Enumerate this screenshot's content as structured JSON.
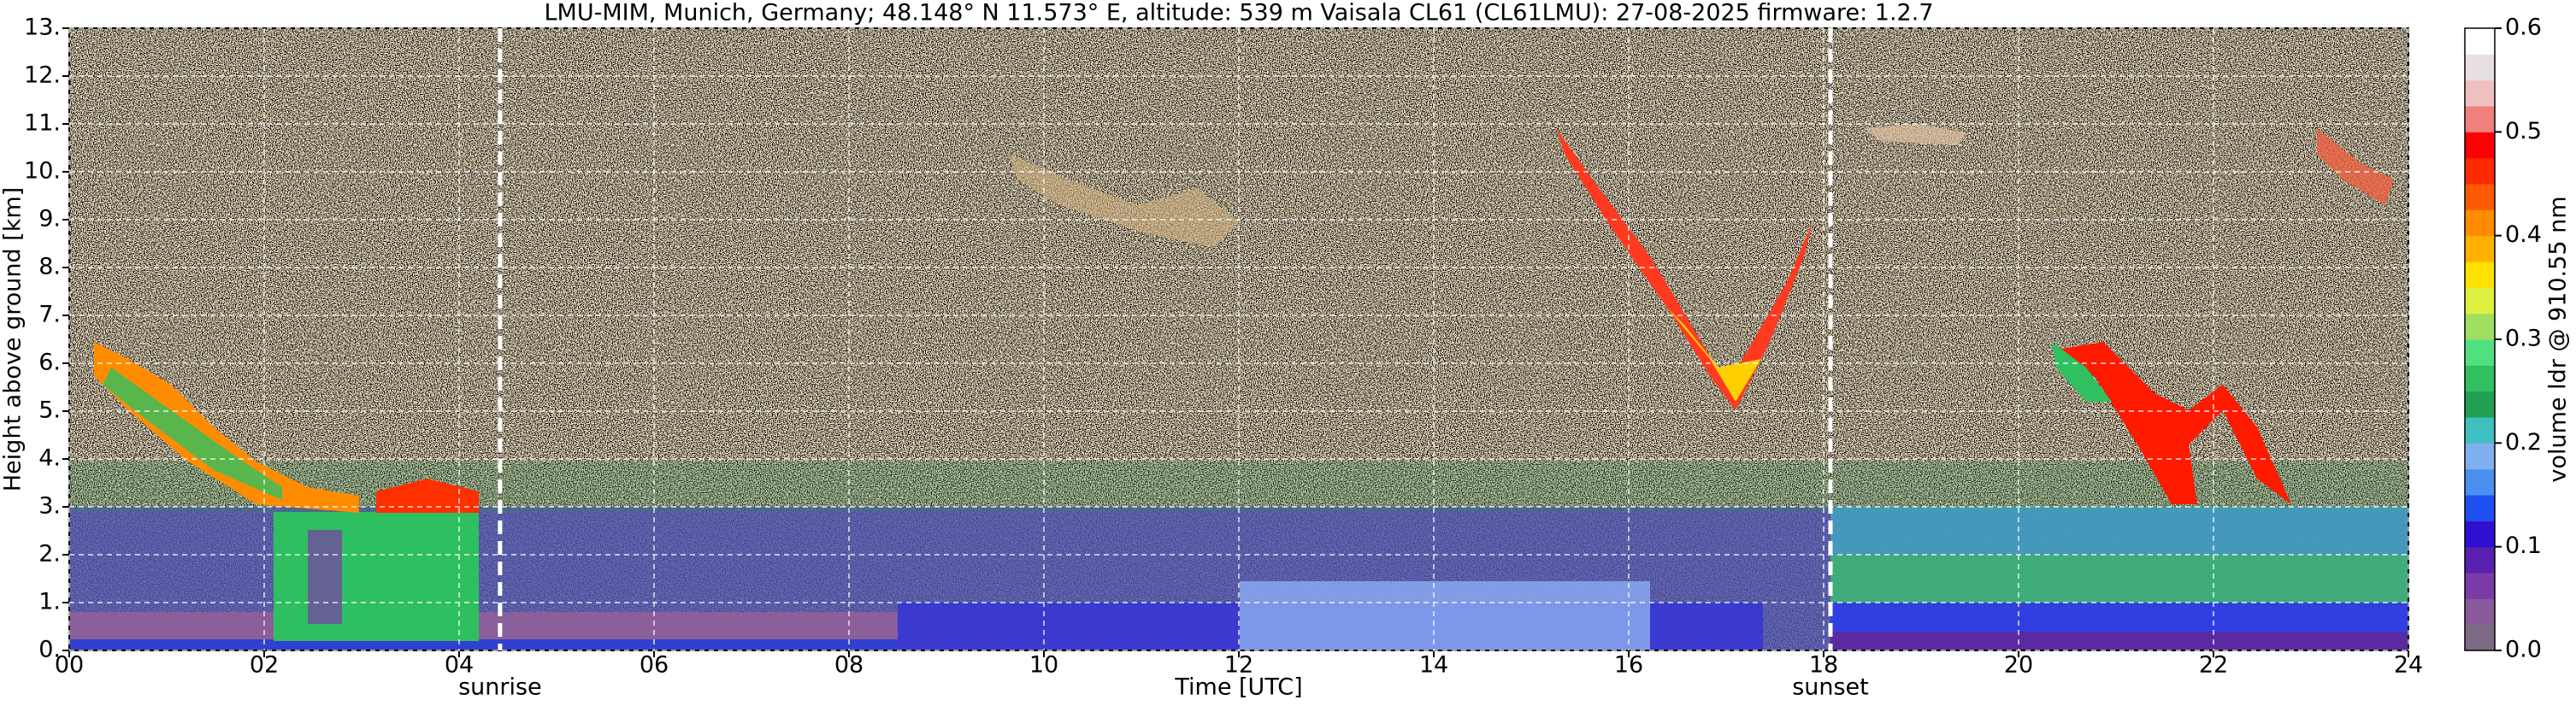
{
  "chart_data": {
    "type": "heatmap",
    "title": "LMU-MIM, Munich, Germany; 48.148° N 11.573° E, altitude: 539 m    Vaisala CL61 (CL61LMU): 27-08-2025    firmware: 1.2.7",
    "x_label": "Time [UTC]",
    "y_label": "Height above ground [km]",
    "colorbar_label": "volume ldr @ 910.55 nm",
    "xlim": [
      0,
      24
    ],
    "xticks": [
      {
        "value": 0,
        "label": "00"
      },
      {
        "value": 2,
        "label": "02"
      },
      {
        "value": 4,
        "label": "04"
      },
      {
        "value": 6,
        "label": "06"
      },
      {
        "value": 8,
        "label": "08"
      },
      {
        "value": 10,
        "label": "10"
      },
      {
        "value": 12,
        "label": "12"
      },
      {
        "value": 14,
        "label": "14"
      },
      {
        "value": 16,
        "label": "16"
      },
      {
        "value": 18,
        "label": "18"
      },
      {
        "value": 20,
        "label": "20"
      },
      {
        "value": 22,
        "label": "22"
      },
      {
        "value": 24,
        "label": "24"
      }
    ],
    "ylim": [
      0,
      13
    ],
    "yticks": [
      {
        "value": 0,
        "label": "0."
      },
      {
        "value": 1,
        "label": "1."
      },
      {
        "value": 2,
        "label": "2."
      },
      {
        "value": 3,
        "label": "3."
      },
      {
        "value": 4,
        "label": "4."
      },
      {
        "value": 5,
        "label": "5."
      },
      {
        "value": 6,
        "label": "6."
      },
      {
        "value": 7,
        "label": "7."
      },
      {
        "value": 8,
        "label": "8."
      },
      {
        "value": 9,
        "label": "9."
      },
      {
        "value": 10,
        "label": "10."
      },
      {
        "value": 11,
        "label": "11."
      },
      {
        "value": 12,
        "label": "12."
      },
      {
        "value": 13,
        "label": "13."
      }
    ],
    "clim": [
      0,
      0.6
    ],
    "cticks": [
      {
        "value": 0,
        "label": "0.0"
      },
      {
        "value": 0.1,
        "label": "0.1"
      },
      {
        "value": 0.2,
        "label": "0.2"
      },
      {
        "value": 0.3,
        "label": "0.3"
      },
      {
        "value": 0.4,
        "label": "0.4"
      },
      {
        "value": 0.5,
        "label": "0.5"
      },
      {
        "value": 0.6,
        "label": "0.6"
      }
    ],
    "colormap": [
      "#7f6a86",
      "#8a5a9a",
      "#7a3aa8",
      "#5a20b0",
      "#3010d0",
      "#2050f0",
      "#4a90f0",
      "#80b0f0",
      "#40c0c0",
      "#20a050",
      "#30c060",
      "#50e080",
      "#a0e060",
      "#e0f040",
      "#ffe000",
      "#ffb000",
      "#ff8c00",
      "#ff5a00",
      "#ff2a00",
      "#ff0000",
      "#f08080",
      "#f0c0c0",
      "#e8e0e0",
      "#ffffff"
    ],
    "grid": true,
    "annotations": [
      {
        "text": "sunrise",
        "x": 4.42
      },
      {
        "text": "sunset",
        "x": 18.07
      }
    ]
  }
}
